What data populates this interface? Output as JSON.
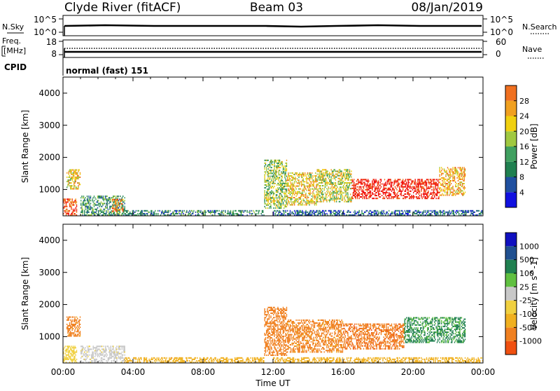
{
  "header": {
    "station": "Clyde River (fitACF)",
    "beam": "Beam 03",
    "date": "08/Jan/2019"
  },
  "sky_panel": {
    "left_label": "N.Sky",
    "left_ticks": [
      "10^5",
      "10^0"
    ],
    "right_label": "N.Search",
    "right_ticks": [
      "10^5",
      "10^0"
    ]
  },
  "freq_panel": {
    "left_label_1": "Freq.",
    "left_label_2": "[MHz]",
    "left_ticks": [
      "18",
      "8"
    ],
    "right_label": "Nave",
    "right_ticks": [
      "60",
      "0"
    ]
  },
  "cpid": {
    "label": "CPID",
    "value": "normal (fast) 151"
  },
  "colors": {
    "power": [
      "#1010e0",
      "#2050a0",
      "#208050",
      "#40a060",
      "#a0c840",
      "#f0d010",
      "#f0a020",
      "#f07020",
      "#f04010",
      "#f01010"
    ],
    "velocity": [
      "#f01010",
      "#f05010",
      "#f08020",
      "#f0b020",
      "#f0d040",
      "#c8c8c8",
      "#60c040",
      "#208050",
      "#205090",
      "#1010c0"
    ]
  },
  "chart_data": [
    {
      "type": "heatmap",
      "name": "power",
      "ylabel": "Slant Range [km]",
      "xlabel": "",
      "xlim_hours": [
        0,
        24
      ],
      "ylim": [
        180,
        4500
      ],
      "yticks": [
        1000,
        2000,
        3000,
        4000
      ],
      "colorbar": {
        "label": "Power [dB]",
        "range": [
          0,
          32
        ],
        "ticks": [
          "4",
          "8",
          "12",
          "16",
          "20",
          "24",
          "28"
        ]
      },
      "echo_regions": [
        {
          "t0": 0.0,
          "t1": 0.8,
          "r0": 180,
          "r1": 700,
          "value": 26
        },
        {
          "t0": 0.2,
          "t1": 1.0,
          "r0": 1000,
          "r1": 1600,
          "value": 18
        },
        {
          "t0": 1.0,
          "t1": 3.5,
          "r0": 180,
          "r1": 800,
          "value": 10
        },
        {
          "t0": 2.8,
          "t1": 3.4,
          "r0": 300,
          "r1": 700,
          "value": 24
        },
        {
          "t0": 3.5,
          "t1": 11.5,
          "r0": 180,
          "r1": 350,
          "value": 8
        },
        {
          "t0": 11.5,
          "t1": 12.8,
          "r0": 400,
          "r1": 1900,
          "value": 14
        },
        {
          "t0": 12.8,
          "t1": 14.5,
          "r0": 500,
          "r1": 1500,
          "value": 18
        },
        {
          "t0": 14.5,
          "t1": 16.5,
          "r0": 600,
          "r1": 1600,
          "value": 16
        },
        {
          "t0": 16.5,
          "t1": 21.5,
          "r0": 700,
          "r1": 1300,
          "value": 30
        },
        {
          "t0": 21.5,
          "t1": 23.0,
          "r0": 800,
          "r1": 1700,
          "value": 20
        },
        {
          "t0": 12.0,
          "t1": 24.0,
          "r0": 180,
          "r1": 320,
          "value": 6
        }
      ]
    },
    {
      "type": "heatmap",
      "name": "velocity",
      "ylabel": "Slant Range [km]",
      "xlabel": "Time UT",
      "xlim_hours": [
        0,
        24
      ],
      "xticks": [
        "00:00",
        "04:00",
        "08:00",
        "12:00",
        "16:00",
        "20:00",
        "00:00"
      ],
      "ylim": [
        180,
        4500
      ],
      "yticks": [
        1000,
        2000,
        3000,
        4000
      ],
      "colorbar": {
        "label": "Velocity [m s^-1]",
        "ticks": [
          "-1000",
          "-500",
          "-100",
          "-25",
          "25",
          "100",
          "500",
          "1000"
        ]
      },
      "echo_regions": [
        {
          "t0": 0.0,
          "t1": 0.8,
          "r0": 180,
          "r1": 700,
          "value": 0
        },
        {
          "t0": 0.2,
          "t1": 1.0,
          "r0": 1000,
          "r1": 1600,
          "value": -150
        },
        {
          "t0": 1.0,
          "t1": 3.5,
          "r0": 180,
          "r1": 700,
          "value": 50
        },
        {
          "t0": 3.5,
          "t1": 11.5,
          "r0": 180,
          "r1": 350,
          "value": -60
        },
        {
          "t0": 11.5,
          "t1": 12.8,
          "r0": 400,
          "r1": 1900,
          "value": -300
        },
        {
          "t0": 12.8,
          "t1": 16.0,
          "r0": 500,
          "r1": 1500,
          "value": -150
        },
        {
          "t0": 16.0,
          "t1": 19.5,
          "r0": 600,
          "r1": 1400,
          "value": -400
        },
        {
          "t0": 19.5,
          "t1": 23.0,
          "r0": 800,
          "r1": 1600,
          "value": 600
        },
        {
          "t0": 12.0,
          "t1": 24.0,
          "r0": 180,
          "r1": 320,
          "value": -60
        }
      ]
    }
  ]
}
